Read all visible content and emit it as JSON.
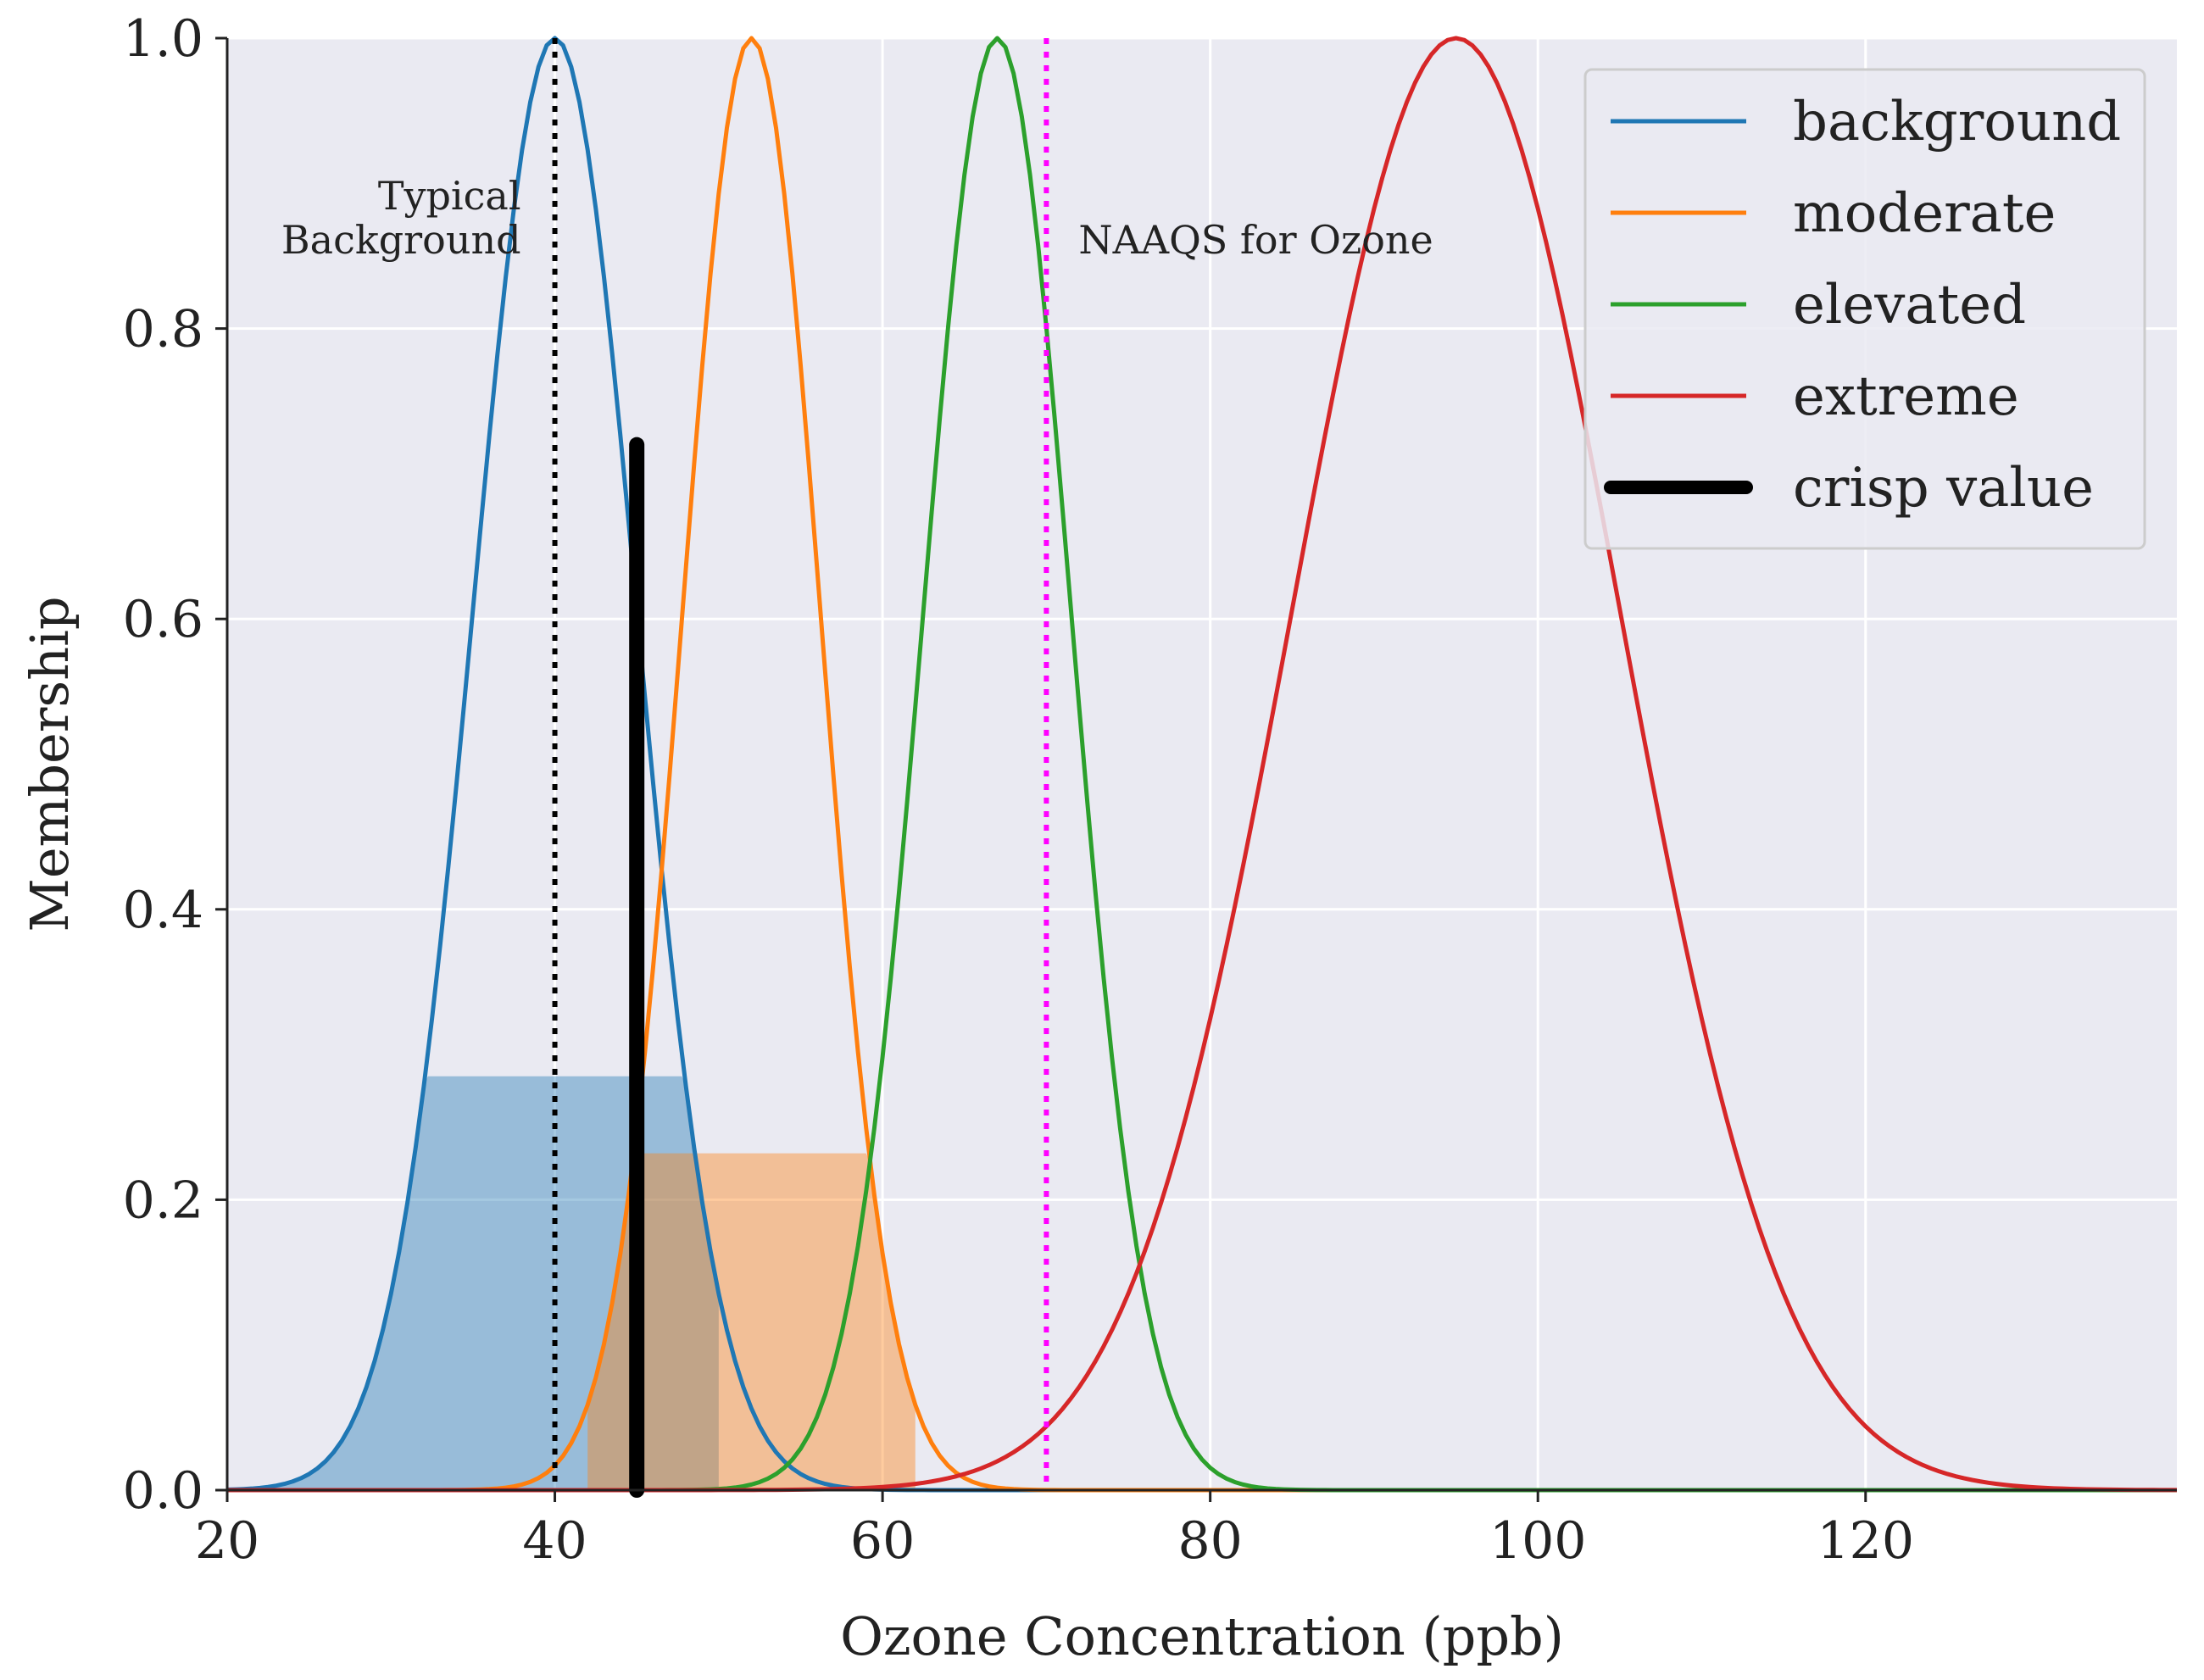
{
  "chart_data": {
    "type": "line",
    "title": "",
    "xlabel": "Ozone Concentration (ppb)",
    "ylabel": "Membership",
    "xlim": [
      20,
      139
    ],
    "ylim": [
      0,
      1.0
    ],
    "xticks": [
      20,
      40,
      60,
      80,
      100,
      120
    ],
    "xtick_labels": [
      "20",
      "40",
      "60",
      "80",
      "100",
      "120"
    ],
    "yticks": [
      0.0,
      0.2,
      0.4,
      0.6,
      0.8,
      1.0
    ],
    "ytick_labels": [
      "0.0",
      "0.2",
      "0.4",
      "0.6",
      "0.8",
      "1.0"
    ],
    "grid": true,
    "background": "#eaeaf2",
    "legend_position": "top-right",
    "series": [
      {
        "name": "background",
        "kind": "gaussian",
        "center": 40,
        "sigma": 5,
        "color": "#1f77b4"
      },
      {
        "name": "moderate",
        "kind": "gaussian",
        "center": 52,
        "sigma": 4.2,
        "color": "#ff7f0e"
      },
      {
        "name": "elevated",
        "kind": "gaussian",
        "center": 67,
        "sigma": 4.5,
        "color": "#2ca02c"
      },
      {
        "name": "extreme",
        "kind": "gaussian",
        "center": 95,
        "sigma": 10,
        "color": "#d62728"
      },
      {
        "name": "crisp value",
        "kind": "vline",
        "x": 45,
        "y_from": 0,
        "y_to": 0.72,
        "color": "#000000"
      }
    ],
    "clipped_fills": [
      {
        "series": "background",
        "level": 0.285,
        "x_range": [
          20,
          50
        ],
        "color": "#1f77b4",
        "opacity": 0.4
      },
      {
        "series": "moderate",
        "level": 0.232,
        "x_range": [
          42,
          62
        ],
        "color": "#ff7f0e",
        "opacity": 0.4
      }
    ],
    "reference_lines": [
      {
        "x": 40,
        "color": "#000000",
        "style": "dotted",
        "label": "Typical\nBackground"
      },
      {
        "x": 70,
        "color": "#ff00ff",
        "style": "dotted",
        "label": "NAAQS for Ozone"
      }
    ],
    "annotations": [
      {
        "text_lines": [
          "Typical",
          "Background"
        ]
      },
      {
        "text_lines": [
          "NAAQS for Ozone"
        ]
      }
    ]
  }
}
